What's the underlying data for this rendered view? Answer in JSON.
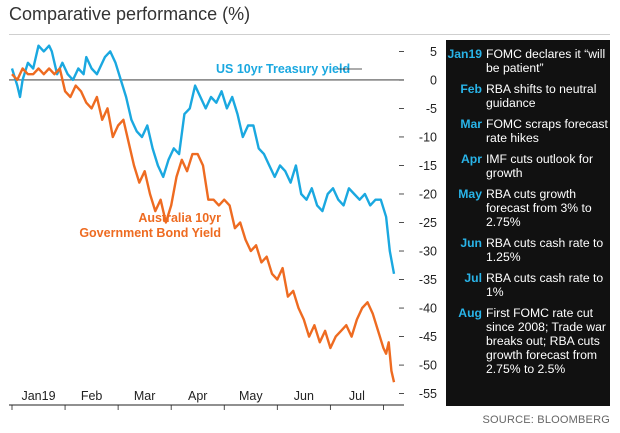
{
  "title": "Comparative performance (%)",
  "source": "SOURCE: BLOOMBERG",
  "colors": {
    "us": "#1aa8e0",
    "au": "#ee6b21",
    "panel_bg": "#111111",
    "accent": "#29b4e8"
  },
  "events": [
    {
      "month": "Jan19",
      "text": "FOMC declares it “will be patient”"
    },
    {
      "month": "Feb",
      "text": "RBA shifts to neutral guidance"
    },
    {
      "month": "Mar",
      "text": "FOMC scraps forecast rate hikes"
    },
    {
      "month": "Apr",
      "text": "IMF cuts outlook for growth"
    },
    {
      "month": "May",
      "text": "RBA cuts growth forecast from 3% to 2.75%"
    },
    {
      "month": "Jun",
      "text": "RBA cuts cash rate to 1.25%"
    },
    {
      "month": "Jul",
      "text": "RBA cuts cash rate to 1%"
    },
    {
      "month": "Aug",
      "text": "First FOMC rate cut since 2008; Trade war breaks out; RBA cuts growth forecast from 2.75% to 2.5%"
    }
  ],
  "chart_data": {
    "type": "line",
    "title": "Comparative performance (%)",
    "xlabel": "",
    "ylabel": "",
    "ylim": [
      -57,
      7
    ],
    "yticks": [
      5,
      0,
      -5,
      -10,
      -15,
      -20,
      -25,
      -30,
      -35,
      -40,
      -45,
      -50,
      -55
    ],
    "month_labels": [
      "Jan19",
      "Feb",
      "Mar",
      "Apr",
      "May",
      "Jun",
      "Jul"
    ],
    "month_positions": [
      0.5,
      1.5,
      2.5,
      3.5,
      4.5,
      5.5,
      6.5
    ],
    "xlim": [
      0,
      7.35
    ],
    "grid": false,
    "legend": "inline labels",
    "series": [
      {
        "name": "US 10yr Treasury yield",
        "x": [
          0.0,
          0.1,
          0.15,
          0.2,
          0.3,
          0.4,
          0.5,
          0.6,
          0.7,
          0.75,
          0.85,
          0.95,
          1.05,
          1.15,
          1.25,
          1.35,
          1.4,
          1.5,
          1.6,
          1.75,
          1.85,
          1.95,
          2.05,
          2.15,
          2.25,
          2.35,
          2.45,
          2.55,
          2.65,
          2.75,
          2.85,
          2.95,
          3.05,
          3.15,
          3.25,
          3.35,
          3.45,
          3.55,
          3.65,
          3.75,
          3.85,
          3.95,
          4.05,
          4.15,
          4.25,
          4.35,
          4.45,
          4.55,
          4.65,
          4.75,
          4.85,
          4.95,
          5.05,
          5.15,
          5.25,
          5.35,
          5.45,
          5.55,
          5.65,
          5.75,
          5.85,
          5.95,
          6.05,
          6.15,
          6.25,
          6.35,
          6.45,
          6.55,
          6.65,
          6.75,
          6.85,
          6.95,
          7.05,
          7.12,
          7.2
        ],
        "values": [
          2,
          -1,
          -3,
          0,
          3,
          2,
          6,
          5,
          6,
          5,
          1,
          3,
          1,
          0,
          2,
          1,
          4,
          2,
          1,
          4,
          5,
          3,
          0,
          -3,
          -7,
          -9,
          -10,
          -8,
          -12,
          -15,
          -17,
          -14,
          -12,
          -13,
          -6,
          -5,
          -1,
          -3,
          -5,
          -3,
          -4,
          -2,
          -5,
          -3,
          -6,
          -10,
          -8,
          -8,
          -12,
          -13,
          -15,
          -17,
          -15,
          -16,
          -18,
          -15,
          -20,
          -21,
          -19,
          -22,
          -23,
          -20,
          -19,
          -21,
          -22,
          -19,
          -20,
          -21,
          -20,
          -22,
          -21,
          -21,
          -24,
          -30,
          -34
        ]
      },
      {
        "name": "Australia 10yr Government Bond Yield",
        "x": [
          0.0,
          0.1,
          0.2,
          0.3,
          0.4,
          0.5,
          0.6,
          0.7,
          0.8,
          0.9,
          1.0,
          1.1,
          1.2,
          1.3,
          1.4,
          1.5,
          1.6,
          1.7,
          1.8,
          1.9,
          2.0,
          2.1,
          2.2,
          2.3,
          2.4,
          2.5,
          2.6,
          2.7,
          2.8,
          2.9,
          3.0,
          3.1,
          3.2,
          3.3,
          3.4,
          3.5,
          3.6,
          3.7,
          3.8,
          3.9,
          4.0,
          4.1,
          4.2,
          4.3,
          4.4,
          4.5,
          4.6,
          4.7,
          4.8,
          4.9,
          5.0,
          5.1,
          5.2,
          5.3,
          5.4,
          5.5,
          5.6,
          5.7,
          5.8,
          5.9,
          6.0,
          6.1,
          6.2,
          6.3,
          6.4,
          6.5,
          6.6,
          6.7,
          6.8,
          6.9,
          7.0,
          7.05,
          7.1,
          7.15,
          7.2
        ],
        "values": [
          1,
          0,
          2,
          1,
          1,
          2,
          1,
          2,
          1,
          2,
          -2,
          -3,
          -1,
          -2,
          -4,
          -5,
          -3,
          -7,
          -5,
          -10,
          -8,
          -7,
          -11,
          -15,
          -18,
          -16,
          -20,
          -23,
          -21,
          -25,
          -22,
          -17,
          -14,
          -16,
          -13,
          -13,
          -15,
          -21,
          -21,
          -22,
          -21,
          -22,
          -26,
          -25,
          -28,
          -30,
          -29,
          -32,
          -31,
          -34,
          -35,
          -33,
          -38,
          -37,
          -40,
          -42,
          -45,
          -43,
          -46,
          -44,
          -47,
          -45,
          -44,
          -43,
          -45,
          -42,
          -40,
          -39,
          -41,
          -44,
          -47,
          -48,
          -46,
          -51,
          -53
        ]
      }
    ]
  }
}
